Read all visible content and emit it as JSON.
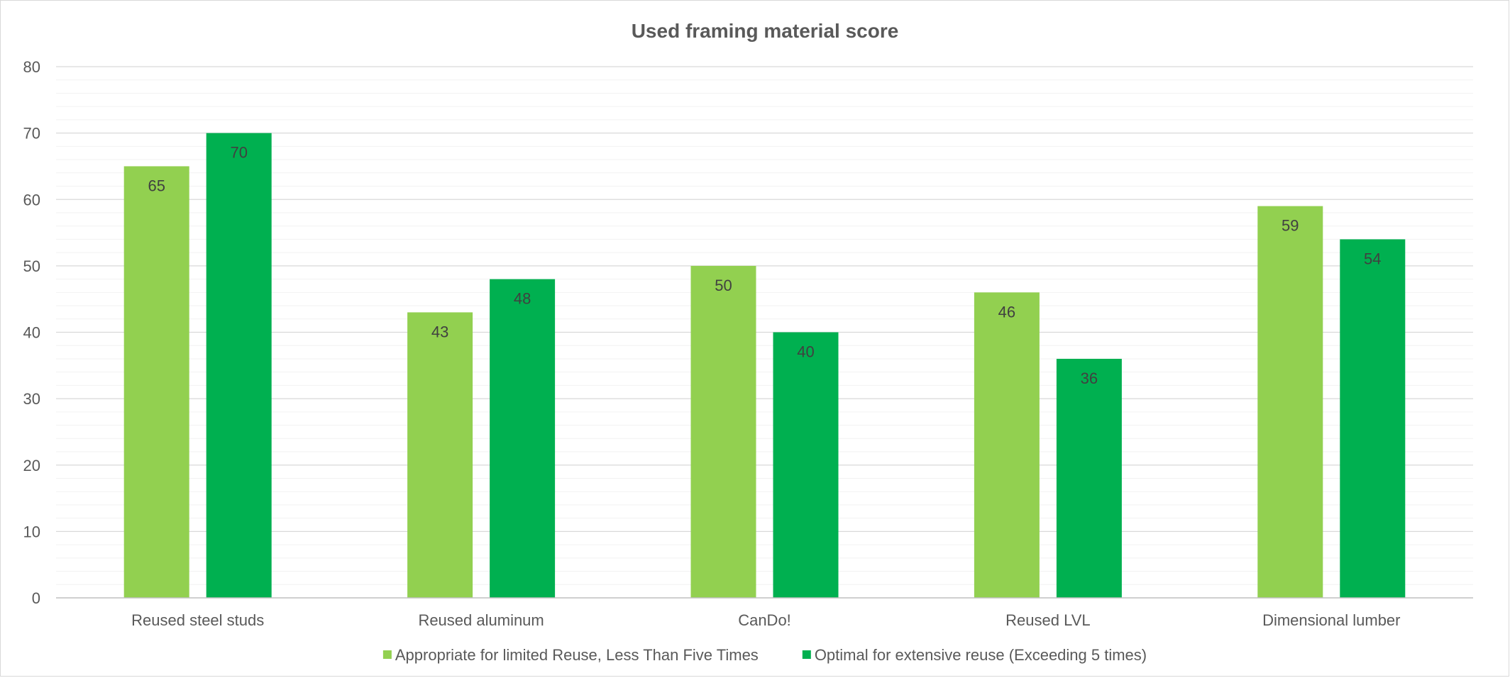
{
  "chart_data": {
    "type": "bar",
    "title": "Used framing material score",
    "xlabel": "",
    "ylabel": "",
    "categories": [
      "Reused steel studs",
      "Reused aluminum",
      "CanDo!",
      "Reused LVL",
      "Dimensional lumber"
    ],
    "series": [
      {
        "name": "Appropriate for limited Reuse, Less Than Five Times",
        "values": [
          65,
          43,
          50,
          46,
          59
        ],
        "color": "#92d050"
      },
      {
        "name": "Optimal for extensive reuse (Exceeding 5 times)",
        "values": [
          70,
          48,
          40,
          36,
          54
        ],
        "color": "#00b050"
      }
    ],
    "ylim": [
      0,
      80
    ],
    "yticks": [
      0,
      10,
      20,
      30,
      40,
      50,
      60,
      70,
      80
    ],
    "grid": true,
    "minor_gridlines": true,
    "data_labels": true,
    "legend_position": "bottom"
  }
}
